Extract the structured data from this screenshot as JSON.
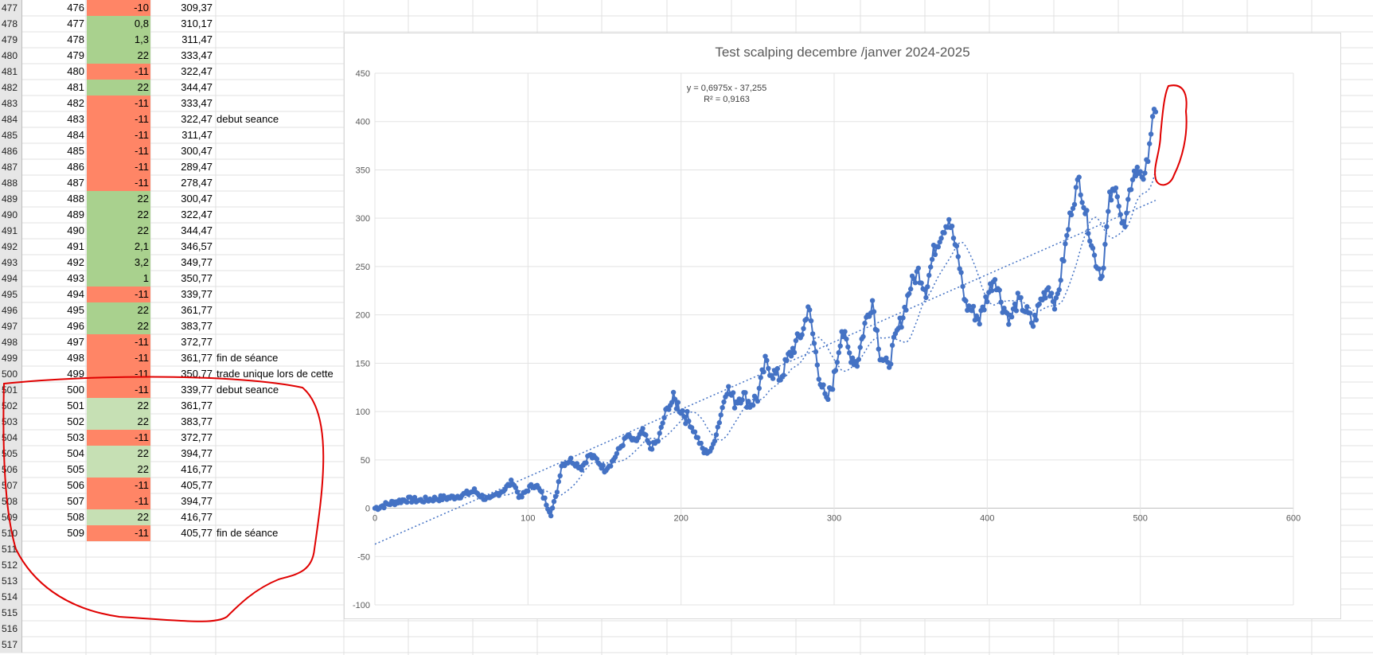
{
  "sheet": {
    "rows": [
      {
        "rh": "477",
        "a": "476",
        "b": "-10",
        "c": "309,37",
        "d": "",
        "color": "neg"
      },
      {
        "rh": "478",
        "a": "477",
        "b": "0,8",
        "c": "310,17",
        "d": "",
        "color": "pos"
      },
      {
        "rh": "479",
        "a": "478",
        "b": "1,3",
        "c": "311,47",
        "d": "",
        "color": "pos"
      },
      {
        "rh": "480",
        "a": "479",
        "b": "22",
        "c": "333,47",
        "d": "",
        "color": "pos"
      },
      {
        "rh": "481",
        "a": "480",
        "b": "-11",
        "c": "322,47",
        "d": "",
        "color": "neg"
      },
      {
        "rh": "482",
        "a": "481",
        "b": "22",
        "c": "344,47",
        "d": "",
        "color": "pos"
      },
      {
        "rh": "483",
        "a": "482",
        "b": "-11",
        "c": "333,47",
        "d": "",
        "color": "neg"
      },
      {
        "rh": "484",
        "a": "483",
        "b": "-11",
        "c": "322,47",
        "d": "debut seance",
        "color": "neg"
      },
      {
        "rh": "485",
        "a": "484",
        "b": "-11",
        "c": "311,47",
        "d": "",
        "color": "neg"
      },
      {
        "rh": "486",
        "a": "485",
        "b": "-11",
        "c": "300,47",
        "d": "",
        "color": "neg"
      },
      {
        "rh": "487",
        "a": "486",
        "b": "-11",
        "c": "289,47",
        "d": "",
        "color": "neg"
      },
      {
        "rh": "488",
        "a": "487",
        "b": "-11",
        "c": "278,47",
        "d": "",
        "color": "neg"
      },
      {
        "rh": "489",
        "a": "488",
        "b": "22",
        "c": "300,47",
        "d": "",
        "color": "pos"
      },
      {
        "rh": "490",
        "a": "489",
        "b": "22",
        "c": "322,47",
        "d": "",
        "color": "pos"
      },
      {
        "rh": "491",
        "a": "490",
        "b": "22",
        "c": "344,47",
        "d": "",
        "color": "pos"
      },
      {
        "rh": "492",
        "a": "491",
        "b": "2,1",
        "c": "346,57",
        "d": "",
        "color": "pos"
      },
      {
        "rh": "493",
        "a": "492",
        "b": "3,2",
        "c": "349,77",
        "d": "",
        "color": "pos"
      },
      {
        "rh": "494",
        "a": "493",
        "b": "1",
        "c": "350,77",
        "d": "",
        "color": "pos"
      },
      {
        "rh": "495",
        "a": "494",
        "b": "-11",
        "c": "339,77",
        "d": "",
        "color": "neg"
      },
      {
        "rh": "496",
        "a": "495",
        "b": "22",
        "c": "361,77",
        "d": "",
        "color": "pos"
      },
      {
        "rh": "497",
        "a": "496",
        "b": "22",
        "c": "383,77",
        "d": "",
        "color": "pos"
      },
      {
        "rh": "498",
        "a": "497",
        "b": "-11",
        "c": "372,77",
        "d": "",
        "color": "neg"
      },
      {
        "rh": "499",
        "a": "498",
        "b": "-11",
        "c": "361,77",
        "d": "fin de séance",
        "color": "neg"
      },
      {
        "rh": "500",
        "a": "499",
        "b": "-11",
        "c": "350,77",
        "d": "trade unique lors de cette",
        "color": "neg"
      },
      {
        "rh": "501",
        "a": "500",
        "b": "-11",
        "c": "339,77",
        "d": "debut seance",
        "color": "neg"
      },
      {
        "rh": "502",
        "a": "501",
        "b": "22",
        "c": "361,77",
        "d": "",
        "color": "posl"
      },
      {
        "rh": "503",
        "a": "502",
        "b": "22",
        "c": "383,77",
        "d": "",
        "color": "posl"
      },
      {
        "rh": "504",
        "a": "503",
        "b": "-11",
        "c": "372,77",
        "d": "",
        "color": "neg"
      },
      {
        "rh": "505",
        "a": "504",
        "b": "22",
        "c": "394,77",
        "d": "",
        "color": "posl"
      },
      {
        "rh": "506",
        "a": "505",
        "b": "22",
        "c": "416,77",
        "d": "",
        "color": "posl"
      },
      {
        "rh": "507",
        "a": "506",
        "b": "-11",
        "c": "405,77",
        "d": "",
        "color": "neg"
      },
      {
        "rh": "508",
        "a": "507",
        "b": "-11",
        "c": "394,77",
        "d": "",
        "color": "neg"
      },
      {
        "rh": "509",
        "a": "508",
        "b": "22",
        "c": "416,77",
        "d": "",
        "color": "posl"
      },
      {
        "rh": "510",
        "a": "509",
        "b": "-11",
        "c": "405,77",
        "d": "fin de séance",
        "color": "neg"
      },
      {
        "rh": "511",
        "a": "",
        "b": "",
        "c": "",
        "d": "",
        "color": ""
      },
      {
        "rh": "512",
        "a": "",
        "b": "",
        "c": "",
        "d": "",
        "color": ""
      },
      {
        "rh": "513",
        "a": "",
        "b": "",
        "c": "",
        "d": "",
        "color": ""
      },
      {
        "rh": "514",
        "a": "",
        "b": "",
        "c": "",
        "d": "",
        "color": ""
      },
      {
        "rh": "515",
        "a": "",
        "b": "",
        "c": "",
        "d": "",
        "color": ""
      },
      {
        "rh": "516",
        "a": "",
        "b": "",
        "c": "",
        "d": "",
        "color": ""
      },
      {
        "rh": "517",
        "a": "",
        "b": "",
        "c": "",
        "d": "",
        "color": ""
      }
    ]
  },
  "colors": {
    "positive": "#a9d18e",
    "positive_light": "#c6e0b4",
    "negative": "#ff8566",
    "series": "#4472c4",
    "annotation": "#e00000"
  },
  "chart_data": {
    "type": "scatter",
    "title": "Test scalping decembre /janver 2024-2025",
    "equation": "y = 0,6975x - 37,255",
    "r2": "R² = 0,9163",
    "xlim": [
      0,
      600
    ],
    "ylim": [
      -100,
      450
    ],
    "xticks": [
      "0",
      "100",
      "200",
      "300",
      "400",
      "500",
      "600"
    ],
    "yticks": [
      "-100",
      "-50",
      "0",
      "50",
      "100",
      "150",
      "200",
      "250",
      "300",
      "350",
      "400",
      "450"
    ],
    "grid": true,
    "trendline": {
      "slope": 0.6975,
      "intercept": -37.255
    },
    "keypoints": [
      [
        0,
        0
      ],
      [
        10,
        5
      ],
      [
        20,
        9
      ],
      [
        30,
        8
      ],
      [
        40,
        10
      ],
      [
        50,
        11
      ],
      [
        60,
        15
      ],
      [
        65,
        18
      ],
      [
        70,
        12
      ],
      [
        75,
        8
      ],
      [
        80,
        15
      ],
      [
        85,
        20
      ],
      [
        90,
        28
      ],
      [
        95,
        10
      ],
      [
        100,
        20
      ],
      [
        105,
        25
      ],
      [
        110,
        12
      ],
      [
        115,
        -5
      ],
      [
        118,
        10
      ],
      [
        122,
        45
      ],
      [
        128,
        50
      ],
      [
        135,
        42
      ],
      [
        140,
        55
      ],
      [
        145,
        50
      ],
      [
        150,
        40
      ],
      [
        155,
        48
      ],
      [
        160,
        62
      ],
      [
        165,
        75
      ],
      [
        170,
        68
      ],
      [
        175,
        80
      ],
      [
        180,
        62
      ],
      [
        185,
        70
      ],
      [
        190,
        100
      ],
      [
        195,
        112
      ],
      [
        200,
        103
      ],
      [
        205,
        90
      ],
      [
        210,
        75
      ],
      [
        215,
        58
      ],
      [
        220,
        60
      ],
      [
        225,
        90
      ],
      [
        230,
        125
      ],
      [
        235,
        110
      ],
      [
        240,
        118
      ],
      [
        245,
        108
      ],
      [
        250,
        115
      ],
      [
        255,
        150
      ],
      [
        260,
        140
      ],
      [
        265,
        135
      ],
      [
        270,
        155
      ],
      [
        275,
        170
      ],
      [
        280,
        185
      ],
      [
        283,
        210
      ],
      [
        286,
        180
      ],
      [
        290,
        140
      ],
      [
        295,
        108
      ],
      [
        300,
        135
      ],
      [
        305,
        185
      ],
      [
        310,
        160
      ],
      [
        315,
        150
      ],
      [
        320,
        190
      ],
      [
        325,
        215
      ],
      [
        330,
        160
      ],
      [
        335,
        145
      ],
      [
        340,
        175
      ],
      [
        345,
        200
      ],
      [
        350,
        230
      ],
      [
        355,
        245
      ],
      [
        360,
        225
      ],
      [
        365,
        265
      ],
      [
        370,
        285
      ],
      [
        375,
        300
      ],
      [
        378,
        280
      ],
      [
        382,
        250
      ],
      [
        386,
        210
      ],
      [
        390,
        205
      ],
      [
        395,
        195
      ],
      [
        400,
        220
      ],
      [
        405,
        240
      ],
      [
        410,
        210
      ],
      [
        415,
        195
      ],
      [
        420,
        215
      ],
      [
        425,
        205
      ],
      [
        430,
        190
      ],
      [
        435,
        215
      ],
      [
        440,
        230
      ],
      [
        445,
        210
      ],
      [
        450,
        260
      ],
      [
        455,
        310
      ],
      [
        460,
        340
      ],
      [
        465,
        300
      ],
      [
        470,
        260
      ],
      [
        475,
        240
      ],
      [
        480,
        320
      ],
      [
        485,
        330
      ],
      [
        488,
        295
      ],
      [
        490,
        290
      ],
      [
        495,
        345
      ],
      [
        500,
        350
      ],
      [
        503,
        340
      ],
      [
        506,
        380
      ],
      [
        508,
        400
      ],
      [
        510,
        410
      ]
    ]
  }
}
